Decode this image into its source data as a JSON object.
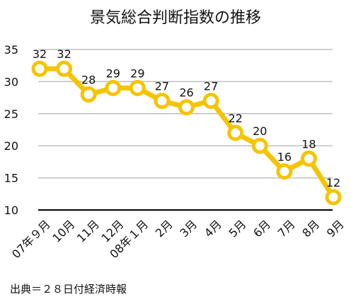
{
  "chart_data": {
    "type": "line",
    "title": "景気総合判断指数の推移",
    "xlabel": "",
    "ylabel": "",
    "categories": [
      "07年９月",
      "10月",
      "11月",
      "12月",
      "08年１月",
      "2月",
      "3月",
      "4月",
      "5月",
      "6月",
      "7月",
      "8月",
      "9月"
    ],
    "series": [
      {
        "values": [
          32,
          32,
          28,
          29,
          29,
          27,
          26,
          27,
          22,
          20,
          16,
          18,
          12
        ]
      }
    ],
    "data_labels": [
      "32",
      "32",
      "28",
      "29",
      "29",
      "27",
      "26",
      "27",
      "22",
      "20",
      "16",
      "18",
      "12"
    ],
    "y_ticks": [
      "10",
      "15",
      "20",
      "25",
      "30",
      "35"
    ],
    "ylim": [
      10,
      35
    ],
    "grid": "horizontal",
    "legend": "none",
    "colors": {
      "line": "#F5C400",
      "marker_fill": "#ffffff",
      "gridline": "#bfbfbf",
      "baseline": "#000000"
    }
  },
  "footer": {
    "source": "出典＝２８日付経済時報"
  }
}
